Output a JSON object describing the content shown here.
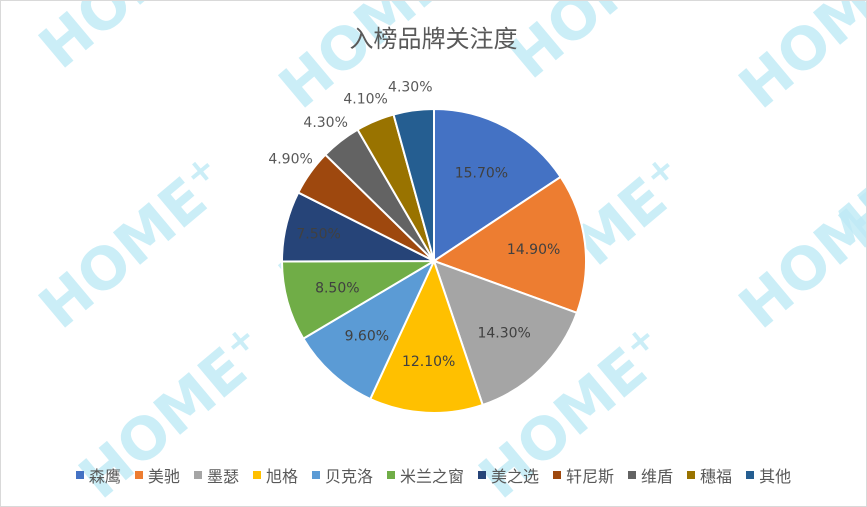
{
  "chart_data": {
    "type": "pie",
    "title": "入榜品牌关注度",
    "categories": [
      "森鹰",
      "美驰",
      "墨瑟",
      "旭格",
      "贝克洛",
      "米兰之窗",
      "美之选",
      "轩尼斯",
      "维盾",
      "穗福",
      "其他"
    ],
    "values": [
      15.7,
      14.9,
      14.3,
      12.1,
      9.6,
      8.5,
      7.5,
      4.9,
      4.3,
      4.1,
      4.3
    ],
    "labels": [
      "15.70%",
      "14.90%",
      "14.30%",
      "12.10%",
      "9.60%",
      "8.50%",
      "7.50%",
      "4.90%",
      "4.30%",
      "4.10%",
      "4.30%"
    ],
    "colors": [
      "#4472C4",
      "#ED7D31",
      "#A5A5A5",
      "#FFC000",
      "#5B9BD5",
      "#70AD47",
      "#264478",
      "#9E480E",
      "#636363",
      "#997300",
      "#255E91"
    ],
    "start_angle": "12 o'clock, clockwise",
    "legend_position": "bottom"
  },
  "watermark": {
    "text": "HOME",
    "superscript": "+",
    "color": "#bfeaf6"
  }
}
